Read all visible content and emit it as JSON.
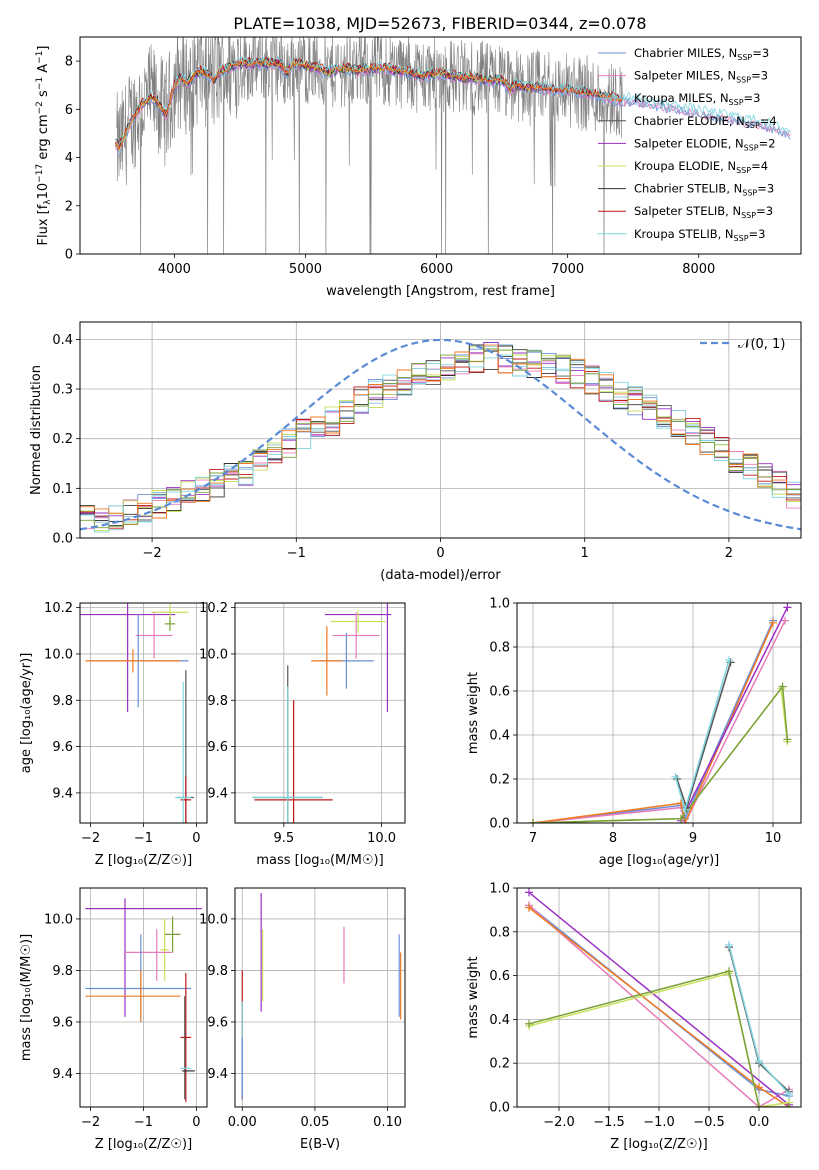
{
  "title": "PLATE=1038, MJD=52673, FIBERID=0344, z=0.078",
  "colors": {
    "chabrier_miles": "#6b8fd6",
    "salpeter_miles": "#e87cba",
    "kroupa_miles": "#8ac0d8",
    "chabrier_elodie": "#555555",
    "salpeter_elodie": "#9b30c4",
    "kroupa_elodie": "#c8e05a",
    "chabrier_stelib": "#333333",
    "salpeter_stelib": "#c01818",
    "kroupa_stelib": "#7fd6e0",
    "orange": "#f07a20",
    "olive": "#7aa03a",
    "data": "#808080",
    "normal": "#5b8ad6"
  },
  "chart_data": [
    {
      "type": "line",
      "id": "spectrum",
      "xlabel": "wavelength [Angstrom, rest frame]",
      "ylabel_parts": [
        "Flux [f",
        "λ",
        "10",
        "−17",
        " erg cm",
        "−2",
        " s",
        "−1",
        " A",
        "−1",
        "]"
      ],
      "xlim": [
        3280,
        8780
      ],
      "ylim": [
        0,
        9
      ],
      "xticks": [
        4000,
        5000,
        6000,
        7000,
        8000
      ],
      "yticks": [
        0,
        2,
        4,
        6,
        8
      ],
      "grid": false,
      "legend": "top-right",
      "legend_entries": [
        {
          "base": "Chabrier MILES, N",
          "sub": "SSP",
          "tail": "=3",
          "color": "chabrier_miles"
        },
        {
          "base": "Salpeter MILES, N",
          "sub": "SSP",
          "tail": "=3",
          "color": "salpeter_miles"
        },
        {
          "base": "Kroupa MILES, N",
          "sub": "SSP",
          "tail": "=3",
          "color": "kroupa_miles"
        },
        {
          "base": "Chabrier ELODIE, N",
          "sub": "SSP",
          "tail": "=4",
          "color": "chabrier_elodie"
        },
        {
          "base": "Salpeter ELODIE, N",
          "sub": "SSP",
          "tail": "=2",
          "color": "salpeter_elodie"
        },
        {
          "base": "Kroupa ELODIE, N",
          "sub": "SSP",
          "tail": "=4",
          "color": "kroupa_elodie"
        },
        {
          "base": "Chabrier STELIB, N",
          "sub": "SSP",
          "tail": "=3",
          "color": "chabrier_stelib"
        },
        {
          "base": "Salpeter STELIB, N",
          "sub": "SSP",
          "tail": "=3",
          "color": "salpeter_stelib"
        },
        {
          "base": "Kroupa STELIB, N",
          "sub": "SSP",
          "tail": "=3",
          "color": "kroupa_stelib"
        }
      ],
      "model_x": [
        3550,
        3580,
        3620,
        3660,
        3700,
        3740,
        3780,
        3820,
        3860,
        3900,
        3940,
        3970,
        4000,
        4050,
        4100,
        4150,
        4200,
        4260,
        4300,
        4340,
        4400,
        4500,
        4600,
        4700,
        4800,
        4861,
        4900,
        5000,
        5100,
        5175,
        5200,
        5300,
        5400,
        5500,
        5600,
        5700,
        5800,
        5890,
        6000,
        6100,
        6200,
        6300,
        6400,
        6500,
        6563,
        6600,
        6700,
        6800,
        6900,
        7000,
        7100,
        7200,
        7300,
        7400,
        7500,
        7600,
        7700,
        7800,
        7900,
        8000,
        8100,
        8200,
        8300,
        8400,
        8500,
        8600,
        8700
      ],
      "model_y": [
        4.6,
        4.4,
        4.9,
        5.4,
        5.8,
        6.1,
        6.3,
        6.5,
        6.4,
        6.0,
        5.8,
        6.4,
        7.0,
        7.3,
        7.1,
        7.4,
        7.6,
        7.4,
        7.2,
        7.5,
        7.7,
        7.9,
        7.9,
        7.9,
        7.9,
        7.5,
        7.9,
        7.8,
        7.7,
        7.5,
        7.6,
        7.7,
        7.6,
        7.7,
        7.7,
        7.6,
        7.5,
        7.4,
        7.5,
        7.4,
        7.3,
        7.3,
        7.2,
        7.2,
        6.8,
        7.0,
        6.9,
        6.9,
        6.8,
        6.8,
        6.7,
        6.6,
        6.5,
        6.4,
        6.4,
        6.3,
        6.2,
        6.1,
        6.0,
        5.9,
        5.8,
        5.7,
        5.6,
        5.5,
        5.4,
        5.2,
        5.0
      ],
      "data_range": [
        3560,
        7420
      ]
    },
    {
      "type": "step",
      "id": "residual-hist",
      "xlabel": "(data-model)/error",
      "ylabel": "Normed distribution",
      "xlim": [
        -2.5,
        2.5
      ],
      "ylim": [
        0,
        0.435
      ],
      "xticks": [
        -2,
        -1,
        0,
        1,
        2
      ],
      "xticklabels": [
        "−2",
        "−1",
        "0",
        "1",
        "2"
      ],
      "yticks": [
        0.0,
        0.1,
        0.2,
        0.3,
        0.4
      ],
      "yticklabels": [
        "0.0",
        "0.1",
        "0.2",
        "0.3",
        "0.4"
      ],
      "grid": true,
      "legend": "top-right",
      "normal_label": "𝒩(0, 1)",
      "bin_width": 0.1,
      "bin_start": -2.5,
      "hist_base": [
        0.04,
        0.03,
        0.045,
        0.05,
        0.06,
        0.07,
        0.08,
        0.09,
        0.1,
        0.11,
        0.12,
        0.135,
        0.155,
        0.17,
        0.19,
        0.21,
        0.225,
        0.235,
        0.26,
        0.275,
        0.29,
        0.3,
        0.315,
        0.325,
        0.335,
        0.345,
        0.355,
        0.36,
        0.365,
        0.36,
        0.355,
        0.35,
        0.345,
        0.34,
        0.33,
        0.32,
        0.305,
        0.29,
        0.275,
        0.26,
        0.245,
        0.23,
        0.215,
        0.195,
        0.175,
        0.16,
        0.14,
        0.12,
        0.105,
        0.09,
        0.075
      ]
    },
    {
      "type": "scatter",
      "id": "age-vs-z",
      "xlabel": "Z [log₁₀(Z/Z☉)]",
      "ylabel": "age  [log₁₀(age/yr)]",
      "xlim": [
        -2.2,
        0.2
      ],
      "ylim": [
        9.27,
        10.22
      ],
      "xticks": [
        -2,
        -1,
        0
      ],
      "xticklabels": [
        "−2",
        "−1",
        "0"
      ],
      "yticks": [
        9.4,
        9.6,
        9.8,
        10.0,
        10.2
      ],
      "yticklabels": [
        "9.4",
        "9.6",
        "9.8",
        "10.0",
        "10.2"
      ],
      "grid": true,
      "points": [
        {
          "x": -1.3,
          "y": 10.17,
          "xerr": 0.9,
          "yerr": 0.42,
          "color": "salpeter_elodie"
        },
        {
          "x": -0.5,
          "y": 10.18,
          "xerr": 0.35,
          "yerr": 0.05,
          "color": "kroupa_elodie"
        },
        {
          "x": -0.8,
          "y": 10.08,
          "xerr": 0.35,
          "yerr": 0.1,
          "color": "salpeter_miles"
        },
        {
          "x": -1.1,
          "y": 9.97,
          "xerr": 0.95,
          "yerr": 0.2,
          "color": "chabrier_miles"
        },
        {
          "x": -1.2,
          "y": 9.97,
          "xerr": 0.9,
          "yerr": 0.05,
          "color": "orange"
        },
        {
          "x": -0.5,
          "y": 10.13,
          "xerr": 0.1,
          "yerr": 0.03,
          "color": "olive"
        },
        {
          "x": -0.2,
          "y": 9.38,
          "xerr": 0.15,
          "yerr": 0.55,
          "color": "chabrier_elodie"
        },
        {
          "x": -0.2,
          "y": 9.37,
          "xerr": 0.1,
          "yerr": 0.1,
          "color": "salpeter_stelib"
        },
        {
          "x": -0.25,
          "y": 9.38,
          "xerr": 0.15,
          "yerr": 0.5,
          "color": "kroupa_stelib"
        }
      ]
    },
    {
      "type": "scatter",
      "id": "age-vs-mass",
      "xlabel": "mass [log₁₀(M/M☉)]",
      "ylabel": "",
      "xlim": [
        9.25,
        10.12
      ],
      "ylim": [
        9.27,
        10.22
      ],
      "xticks": [
        9.5,
        10.0
      ],
      "xticklabels": [
        "9.5",
        "10.0"
      ],
      "yticks": [
        9.4,
        9.6,
        9.8,
        10.0,
        10.2
      ],
      "yticklabels": [
        "9.4",
        "9.6",
        "9.8",
        "10.0",
        "10.2"
      ],
      "grid": true,
      "points": [
        {
          "x": 9.88,
          "y": 10.17,
          "xerr": 0.17,
          "yerr": 0.0,
          "color": "salpeter_elodie"
        },
        {
          "x": 10.03,
          "y": 10.1,
          "xerr": 0.0,
          "yerr": 0.35,
          "color": "salpeter_elodie"
        },
        {
          "x": 9.88,
          "y": 10.14,
          "xerr": 0.14,
          "yerr": 0.05,
          "color": "kroupa_elodie"
        },
        {
          "x": 9.87,
          "y": 10.08,
          "xerr": 0.12,
          "yerr": 0.1,
          "color": "salpeter_miles"
        },
        {
          "x": 9.82,
          "y": 9.97,
          "xerr": 0.14,
          "yerr": 0.12,
          "color": "chabrier_miles"
        },
        {
          "x": 9.72,
          "y": 9.97,
          "xerr": 0.08,
          "yerr": 0.15,
          "color": "orange"
        },
        {
          "x": 9.52,
          "y": 9.38,
          "xerr": 0.18,
          "yerr": 0.57,
          "color": "chabrier_elodie"
        },
        {
          "x": 9.55,
          "y": 9.37,
          "xerr": 0.2,
          "yerr": 0.43,
          "color": "salpeter_stelib"
        },
        {
          "x": 9.52,
          "y": 9.38,
          "xerr": 0.18,
          "yerr": 0.48,
          "color": "kroupa_stelib"
        }
      ]
    },
    {
      "type": "line",
      "id": "mass-weight-vs-age",
      "xlabel": "age  [log₁₀(age/yr)]",
      "ylabel": "mass weight",
      "xlim": [
        6.8,
        10.35
      ],
      "ylim": [
        0,
        1
      ],
      "xticks": [
        7,
        8,
        9,
        10
      ],
      "yticks": [
        0.0,
        0.2,
        0.4,
        0.6,
        0.8,
        1.0
      ],
      "yticklabels": [
        "0.0",
        "0.2",
        "0.4",
        "0.6",
        "0.8",
        "1.0"
      ],
      "grid": true,
      "series": [
        {
          "color": "chabrier_miles",
          "x": [
            7.0,
            8.85,
            8.9,
            10.0
          ],
          "y": [
            0.0,
            0.08,
            0.02,
            0.92
          ]
        },
        {
          "color": "salpeter_miles",
          "x": [
            7.0,
            8.85,
            8.9,
            10.15
          ],
          "y": [
            0.0,
            0.07,
            0.0,
            0.92
          ]
        },
        {
          "color": "orange",
          "x": [
            7.0,
            8.85,
            8.9,
            10.0
          ],
          "y": [
            0.0,
            0.09,
            0.0,
            0.91
          ]
        },
        {
          "color": "salpeter_elodie",
          "x": [
            8.85,
            10.18
          ],
          "y": [
            0.01,
            0.98
          ]
        },
        {
          "color": "kroupa_elodie",
          "x": [
            7.0,
            8.85,
            10.1,
            10.18
          ],
          "y": [
            0.0,
            0.02,
            0.61,
            0.37
          ]
        },
        {
          "color": "olive",
          "x": [
            7.0,
            8.85,
            10.12,
            10.18
          ],
          "y": [
            0.0,
            0.02,
            0.62,
            0.38
          ]
        },
        {
          "color": "chabrier_elodie",
          "x": [
            8.8,
            8.92,
            9.47
          ],
          "y": [
            0.2,
            0.07,
            0.73
          ]
        },
        {
          "color": "kroupa_stelib",
          "x": [
            8.78,
            8.9,
            9.45
          ],
          "y": [
            0.21,
            0.06,
            0.74
          ]
        }
      ]
    },
    {
      "type": "scatter",
      "id": "mass-vs-z",
      "xlabel": "Z [log₁₀(Z/Z☉)]",
      "ylabel": "mass [log₁₀(M/M☉)]",
      "xlim": [
        -2.2,
        0.2
      ],
      "ylim": [
        9.27,
        10.12
      ],
      "xticks": [
        -2,
        -1,
        0
      ],
      "xticklabels": [
        "−2",
        "−1",
        "0"
      ],
      "yticks": [
        9.4,
        9.6,
        9.8,
        10.0
      ],
      "yticklabels": [
        "9.4",
        "9.6",
        "9.8",
        "10.0"
      ],
      "grid": true,
      "points": [
        {
          "x": -1.0,
          "y": 10.04,
          "xerr": 1.1,
          "yerr": 0.0,
          "color": "salpeter_elodie"
        },
        {
          "x": -1.35,
          "y": 9.85,
          "xerr": 0.0,
          "yerr": 0.23,
          "color": "salpeter_elodie"
        },
        {
          "x": -0.6,
          "y": 9.88,
          "xerr": 0.08,
          "yerr": 0.12,
          "color": "kroupa_elodie"
        },
        {
          "x": -0.9,
          "y": 9.87,
          "xerr": 0.45,
          "yerr": 0.0,
          "color": "salpeter_miles"
        },
        {
          "x": -0.75,
          "y": 9.86,
          "xerr": 0.0,
          "yerr": 0.1,
          "color": "salpeter_miles"
        },
        {
          "x": -1.1,
          "y": 9.73,
          "xerr": 1.0,
          "yerr": 0.0,
          "color": "chabrier_miles"
        },
        {
          "x": -1.05,
          "y": 9.77,
          "xerr": 0.0,
          "yerr": 0.17,
          "color": "chabrier_miles"
        },
        {
          "x": -1.2,
          "y": 9.7,
          "xerr": 0.9,
          "yerr": 0.0,
          "color": "orange"
        },
        {
          "x": -1.05,
          "y": 9.7,
          "xerr": 0.0,
          "yerr": 0.1,
          "color": "orange"
        },
        {
          "x": -0.45,
          "y": 9.94,
          "xerr": 0.15,
          "yerr": 0.07,
          "color": "olive"
        },
        {
          "x": -0.2,
          "y": 9.54,
          "xerr": 0.1,
          "yerr": 0.25,
          "color": "salpeter_stelib"
        },
        {
          "x": -0.22,
          "y": 9.5,
          "xerr": 0.0,
          "yerr": 0.2,
          "color": "chabrier_elodie"
        },
        {
          "x": -0.15,
          "y": 9.41,
          "xerr": 0.12,
          "yerr": 0.0,
          "color": "chabrier_stelib"
        },
        {
          "x": -0.2,
          "y": 9.42,
          "xerr": 0.1,
          "yerr": 0.0,
          "color": "kroupa_stelib"
        }
      ]
    },
    {
      "type": "scatter",
      "id": "mass-vs-ebv",
      "xlabel": "E(B-V)",
      "ylabel": "",
      "xlim": [
        -0.005,
        0.112
      ],
      "ylim": [
        9.27,
        10.12
      ],
      "xticks": [
        0.0,
        0.05,
        0.1
      ],
      "xticklabels": [
        "0.00",
        "0.05",
        "0.10"
      ],
      "yticks": [
        9.4,
        9.6,
        9.8,
        10.0
      ],
      "yticklabels": [
        "9.4",
        "9.6",
        "9.8",
        "10.0"
      ],
      "grid": true,
      "points": [
        {
          "x": 0.0,
          "y": 9.55,
          "xerr": 0.0,
          "yerr": 0.25,
          "color": "salpeter_stelib"
        },
        {
          "x": 0.0,
          "y": 9.5,
          "xerr": 0.0,
          "yerr": 0.18,
          "color": "kroupa_stelib"
        },
        {
          "x": 0.0,
          "y": 9.42,
          "xerr": 0.0,
          "yerr": 0.12,
          "color": "chabrier_miles"
        },
        {
          "x": 0.013,
          "y": 9.87,
          "xerr": 0.0,
          "yerr": 0.23,
          "color": "salpeter_elodie"
        },
        {
          "x": 0.014,
          "y": 9.82,
          "xerr": 0.0,
          "yerr": 0.14,
          "color": "kroupa_elodie"
        },
        {
          "x": 0.07,
          "y": 9.86,
          "xerr": 0.0,
          "yerr": 0.11,
          "color": "salpeter_miles"
        },
        {
          "x": 0.108,
          "y": 9.78,
          "xerr": 0.0,
          "yerr": 0.16,
          "color": "chabrier_miles"
        },
        {
          "x": 0.109,
          "y": 9.74,
          "xerr": 0.0,
          "yerr": 0.13,
          "color": "orange"
        }
      ]
    },
    {
      "type": "line",
      "id": "mass-weight-vs-z",
      "xlabel": "Z [log₁₀(Z/Z☉)]",
      "ylabel": "mass weight",
      "xlim": [
        -2.42,
        0.42
      ],
      "ylim": [
        0,
        1
      ],
      "xticks": [
        -2.0,
        -1.5,
        -1.0,
        -0.5,
        0.0
      ],
      "xticklabels": [
        "−2.0",
        "−1.5",
        "−1.0",
        "−0.5",
        "0.0"
      ],
      "yticks": [
        0.0,
        0.2,
        0.4,
        0.6,
        0.8,
        1.0
      ],
      "yticklabels": [
        "0.0",
        "0.2",
        "0.4",
        "0.6",
        "0.8",
        "1.0"
      ],
      "grid": true,
      "series": [
        {
          "color": "chabrier_miles",
          "x": [
            -2.3,
            0.0,
            0.3
          ],
          "y": [
            0.92,
            0.08,
            0.05
          ]
        },
        {
          "color": "salpeter_miles",
          "x": [
            -2.3,
            0.0,
            0.3
          ],
          "y": [
            0.92,
            0.0,
            0.08
          ]
        },
        {
          "color": "orange",
          "x": [
            -2.3,
            0.0,
            0.3
          ],
          "y": [
            0.91,
            0.09,
            0.0
          ]
        },
        {
          "color": "salpeter_elodie",
          "x": [
            -2.3,
            0.3
          ],
          "y": [
            0.98,
            0.01
          ]
        },
        {
          "color": "kroupa_elodie",
          "x": [
            -2.3,
            -0.3,
            0.0,
            0.3
          ],
          "y": [
            0.37,
            0.61,
            0.0,
            0.02
          ]
        },
        {
          "color": "olive",
          "x": [
            -2.3,
            -0.3,
            0.0,
            0.3
          ],
          "y": [
            0.38,
            0.62,
            0.0,
            0.0
          ]
        },
        {
          "color": "chabrier_elodie",
          "x": [
            -0.3,
            0.0,
            0.3
          ],
          "y": [
            0.73,
            0.2,
            0.07
          ]
        },
        {
          "color": "kroupa_stelib",
          "x": [
            -0.3,
            0.0,
            0.3
          ],
          "y": [
            0.74,
            0.21,
            0.06
          ]
        }
      ]
    }
  ]
}
